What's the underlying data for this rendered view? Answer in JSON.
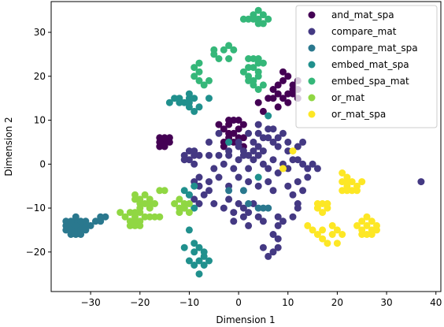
{
  "chart_data": {
    "type": "scatter",
    "xlabel": "Dimension 1",
    "ylabel": "Dimension 2",
    "xlim": [
      -38,
      41
    ],
    "ylim": [
      -29,
      37
    ],
    "xticks": [
      -30,
      -20,
      -10,
      0,
      10,
      20,
      30,
      40
    ],
    "yticks": [
      -20,
      -10,
      0,
      10,
      20,
      30
    ],
    "grid": false,
    "legend_position": "top-right",
    "series": [
      {
        "name": "and_mat_spa",
        "color": "#440154",
        "points": [
          [
            -16,
            6
          ],
          [
            -15,
            5
          ],
          [
            -16,
            4
          ],
          [
            -14,
            6
          ],
          [
            -15,
            4
          ],
          [
            -16,
            5
          ],
          [
            -14,
            5
          ],
          [
            -15,
            6
          ],
          [
            -1,
            10
          ],
          [
            0,
            10
          ],
          [
            1,
            9
          ],
          [
            -2,
            9
          ],
          [
            -3,
            8
          ],
          [
            -1,
            7
          ],
          [
            0,
            8
          ],
          [
            -2,
            7
          ],
          [
            -1,
            5
          ],
          [
            -3,
            5
          ],
          [
            1,
            6
          ],
          [
            -2,
            6
          ],
          [
            -3,
            4
          ],
          [
            1,
            4
          ],
          [
            0,
            6
          ],
          [
            -4,
            9
          ],
          [
            -2,
            10
          ],
          [
            8,
            18
          ],
          [
            9,
            19
          ],
          [
            10,
            20
          ],
          [
            11,
            18
          ],
          [
            8,
            16
          ],
          [
            9,
            15
          ],
          [
            10,
            16
          ],
          [
            11,
            17
          ],
          [
            12,
            19
          ],
          [
            7,
            17
          ],
          [
            9,
            21
          ],
          [
            12,
            17
          ],
          [
            10,
            14
          ],
          [
            7,
            15
          ],
          [
            4,
            14
          ],
          [
            5,
            12
          ],
          [
            8,
            13
          ],
          [
            12,
            15
          ],
          [
            6,
            15
          ],
          [
            11,
            16
          ]
        ]
      },
      {
        "name": "compare_mat",
        "color": "#443983",
        "points": [
          [
            -11,
            2
          ],
          [
            -10,
            3
          ],
          [
            -9,
            2
          ],
          [
            -10,
            1
          ],
          [
            -9,
            0
          ],
          [
            -8,
            2
          ],
          [
            -11,
            1
          ],
          [
            -9,
            3
          ],
          [
            -6,
            2
          ],
          [
            -5,
            -1
          ],
          [
            -4,
            2
          ],
          [
            -3,
            0
          ],
          [
            -2,
            2
          ],
          [
            -1,
            -1
          ],
          [
            0,
            1
          ],
          [
            1,
            3
          ],
          [
            2,
            -1
          ],
          [
            3,
            1
          ],
          [
            4,
            2
          ],
          [
            5,
            0
          ],
          [
            6,
            -1
          ],
          [
            7,
            1
          ],
          [
            8,
            -2
          ],
          [
            9,
            0
          ],
          [
            10,
            -1
          ],
          [
            11,
            1
          ],
          [
            -6,
            5
          ],
          [
            -4,
            7
          ],
          [
            -2,
            3
          ],
          [
            0,
            5
          ],
          [
            2,
            7
          ],
          [
            4,
            9
          ],
          [
            6,
            6
          ],
          [
            7,
            8
          ],
          [
            8,
            4
          ],
          [
            10,
            5
          ],
          [
            13,
            5
          ],
          [
            12,
            4
          ],
          [
            4,
            4
          ],
          [
            2,
            2
          ],
          [
            3,
            5
          ],
          [
            5,
            6
          ],
          [
            7,
            5
          ],
          [
            9,
            7
          ],
          [
            10,
            3
          ],
          [
            12,
            1
          ],
          [
            13,
            0
          ],
          [
            14,
            -1
          ],
          [
            15,
            0
          ],
          [
            14,
            -3
          ],
          [
            -8,
            -3
          ],
          [
            -6,
            -4
          ],
          [
            -4,
            -3
          ],
          [
            -2,
            -5
          ],
          [
            0,
            -3
          ],
          [
            2,
            -4
          ],
          [
            4,
            -5
          ],
          [
            6,
            -4
          ],
          [
            7,
            -6
          ],
          [
            0,
            -9
          ],
          [
            1,
            -10
          ],
          [
            2,
            -11
          ],
          [
            3,
            -9
          ],
          [
            -1,
            -11
          ],
          [
            -3,
            -10
          ],
          [
            -2,
            -8
          ],
          [
            1,
            -12
          ],
          [
            -1,
            -13
          ],
          [
            2,
            -14
          ],
          [
            -5,
            -9
          ],
          [
            4,
            -12
          ],
          [
            5,
            -13
          ],
          [
            8,
            -12
          ],
          [
            9,
            -13
          ],
          [
            8,
            -14
          ],
          [
            11,
            -12
          ],
          [
            12,
            -10
          ],
          [
            7,
            -16
          ],
          [
            8,
            -19
          ],
          [
            6,
            -21
          ],
          [
            7,
            -20
          ],
          [
            5,
            -19
          ],
          [
            8,
            -17
          ],
          [
            11,
            -7
          ],
          [
            12,
            -9
          ],
          [
            13,
            -6
          ],
          [
            10,
            -5
          ],
          [
            16,
            -1
          ],
          [
            12,
            -4
          ],
          [
            -9,
            -4
          ],
          [
            -8,
            -5
          ],
          [
            -11,
            -10
          ],
          [
            -7,
            -7
          ],
          [
            -9,
            -8
          ],
          [
            -6,
            -6
          ],
          [
            -10,
            -7
          ],
          [
            -8,
            -9
          ],
          [
            0,
            4
          ],
          [
            3,
            3
          ],
          [
            5,
            3
          ],
          [
            1,
            2
          ],
          [
            -2,
            5
          ],
          [
            4,
            7
          ],
          [
            6,
            8
          ],
          [
            8,
            6
          ],
          [
            37,
            -4
          ]
        ]
      },
      {
        "name": "compare_mat_spa",
        "color": "#2a788e",
        "points": [
          [
            -34,
            -14
          ],
          [
            -33,
            -13
          ],
          [
            -32,
            -14
          ],
          [
            -33,
            -15
          ],
          [
            -34,
            -15
          ],
          [
            -32,
            -13
          ],
          [
            -33,
            -14
          ],
          [
            -34,
            -13
          ],
          [
            -33,
            -16
          ],
          [
            -32,
            -15
          ],
          [
            -31,
            -14
          ],
          [
            -35,
            -14
          ],
          [
            -35,
            -15
          ],
          [
            -31,
            -13
          ],
          [
            -32,
            -16
          ],
          [
            -34,
            -16
          ],
          [
            -33,
            -12
          ],
          [
            -31,
            -15
          ],
          [
            -35,
            -13
          ],
          [
            -30,
            -14
          ],
          [
            -29,
            -13
          ],
          [
            -28,
            -13
          ],
          [
            -27,
            -12
          ],
          [
            -28,
            -12
          ],
          [
            -2,
            -6
          ],
          [
            1,
            -6
          ],
          [
            5,
            -10
          ],
          [
            6,
            -10
          ],
          [
            2,
            -9
          ],
          [
            4,
            -10
          ]
        ]
      },
      {
        "name": "embed_mat_spa",
        "color": "#20908d",
        "points": [
          [
            -13,
            15
          ],
          [
            -12,
            14
          ],
          [
            -10,
            15
          ],
          [
            -11,
            14
          ],
          [
            -9,
            15
          ],
          [
            -10,
            14
          ],
          [
            -12,
            15
          ],
          [
            -8,
            13
          ],
          [
            -9,
            12
          ],
          [
            -10,
            13
          ],
          [
            -6,
            15
          ],
          [
            -14,
            14
          ],
          [
            -10,
            16
          ],
          [
            -11,
            -6
          ],
          [
            -9,
            -5
          ],
          [
            -10,
            -7
          ],
          [
            -9,
            -10
          ],
          [
            -11,
            -19
          ],
          [
            -9,
            -18
          ],
          [
            -8,
            -19
          ],
          [
            -7,
            -20
          ],
          [
            -10,
            -22
          ],
          [
            -8,
            -22
          ],
          [
            -9,
            -23
          ],
          [
            -7,
            -23
          ],
          [
            -8,
            -25
          ],
          [
            -6,
            -22
          ],
          [
            -10,
            -15
          ],
          [
            -7,
            -21
          ],
          [
            -9,
            -20
          ],
          [
            6,
            11
          ],
          [
            4,
            -3
          ],
          [
            -2,
            5
          ]
        ]
      },
      {
        "name": "embed_spa_mat",
        "color": "#35b779",
        "points": [
          [
            3,
            34
          ],
          [
            4,
            33
          ],
          [
            5,
            34
          ],
          [
            4,
            35
          ],
          [
            3,
            33
          ],
          [
            6,
            33
          ],
          [
            5,
            32
          ],
          [
            2,
            33
          ],
          [
            4,
            32
          ],
          [
            1,
            33
          ],
          [
            3,
            24
          ],
          [
            4,
            23
          ],
          [
            2,
            24
          ],
          [
            3,
            22
          ],
          [
            4,
            21
          ],
          [
            2,
            20
          ],
          [
            3,
            19
          ],
          [
            1,
            21
          ],
          [
            5,
            23
          ],
          [
            2,
            22
          ],
          [
            4,
            24
          ],
          [
            -5,
            25
          ],
          [
            -3,
            26
          ],
          [
            -2,
            24
          ],
          [
            -1,
            26
          ],
          [
            -2,
            27
          ],
          [
            -4,
            24
          ],
          [
            -5,
            26
          ],
          [
            -8,
            21
          ],
          [
            -9,
            20
          ],
          [
            -8,
            19
          ],
          [
            -7,
            18
          ],
          [
            -9,
            22
          ],
          [
            -6,
            19
          ],
          [
            -8,
            23
          ],
          [
            3,
            18
          ],
          [
            4,
            17
          ],
          [
            2,
            19
          ],
          [
            5,
            18
          ],
          [
            4,
            20
          ]
        ]
      },
      {
        "name": "or_mat",
        "color": "#90d743",
        "points": [
          [
            -22,
            -11
          ],
          [
            -21,
            -12
          ],
          [
            -20,
            -11
          ],
          [
            -21,
            -13
          ],
          [
            -20,
            -14
          ],
          [
            -22,
            -14
          ],
          [
            -21,
            -14
          ],
          [
            -20,
            -13
          ],
          [
            -23,
            -12
          ],
          [
            -19,
            -12
          ],
          [
            -21,
            -7
          ],
          [
            -20,
            -8
          ],
          [
            -19,
            -9
          ],
          [
            -18,
            -9
          ],
          [
            -20,
            -10
          ],
          [
            -18,
            -10
          ],
          [
            -17,
            -9
          ],
          [
            -19,
            -7
          ],
          [
            -18,
            -8
          ],
          [
            -21,
            -8
          ],
          [
            -16,
            -6
          ],
          [
            -15,
            -6
          ],
          [
            -17,
            -12
          ],
          [
            -12,
            -8
          ],
          [
            -11,
            -9
          ],
          [
            -10,
            -9
          ],
          [
            -12,
            -10
          ],
          [
            -11,
            -10
          ],
          [
            -13,
            -9
          ],
          [
            -10,
            -11
          ],
          [
            -12,
            -11
          ],
          [
            -24,
            -11
          ],
          [
            -22,
            -13
          ],
          [
            -21,
            -11
          ],
          [
            -20,
            -9
          ],
          [
            -18,
            -12
          ],
          [
            -16,
            -12
          ]
        ]
      },
      {
        "name": "or_mat_spa",
        "color": "#fde725",
        "points": [
          [
            21,
            -4
          ],
          [
            22,
            -5
          ],
          [
            23,
            -6
          ],
          [
            21,
            -6
          ],
          [
            22,
            -3
          ],
          [
            23,
            -4
          ],
          [
            24,
            -5
          ],
          [
            25,
            -4
          ],
          [
            24,
            -6
          ],
          [
            22,
            -6
          ],
          [
            26,
            -14
          ],
          [
            27,
            -13
          ],
          [
            25,
            -15
          ],
          [
            26,
            -16
          ],
          [
            27,
            -15
          ],
          [
            28,
            -14
          ],
          [
            25,
            -13
          ],
          [
            26,
            -12
          ],
          [
            27,
            -16
          ],
          [
            24,
            -14
          ],
          [
            28,
            -15
          ],
          [
            25,
            -16
          ],
          [
            17,
            -9
          ],
          [
            18,
            -10
          ],
          [
            16,
            -10
          ],
          [
            17,
            -11
          ],
          [
            16,
            -9
          ],
          [
            18,
            -9
          ],
          [
            14,
            -14
          ],
          [
            15,
            -15
          ],
          [
            16,
            -16
          ],
          [
            17,
            -17
          ],
          [
            18,
            -18
          ],
          [
            19,
            -16
          ],
          [
            20,
            -15
          ],
          [
            21,
            -16
          ],
          [
            19,
            -14
          ],
          [
            20,
            -18
          ],
          [
            17,
            -15
          ],
          [
            9,
            -1
          ],
          [
            11,
            3
          ],
          [
            21,
            -2
          ],
          [
            22,
            -4
          ]
        ]
      }
    ]
  }
}
